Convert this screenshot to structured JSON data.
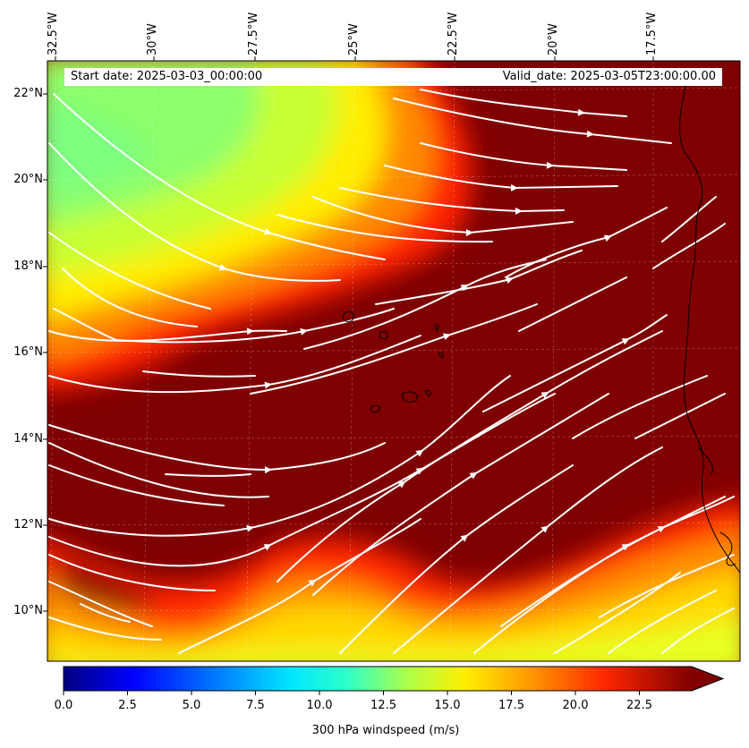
{
  "header": {
    "start_date": "Start date: 2025-03-03_00:00:00",
    "valid_date": "Valid_date: 2025-03-05T23:00:00.00"
  },
  "axes": {
    "lon_labels": [
      "32.5°W",
      "30°W",
      "27.5°W",
      "25°W",
      "22.5°W",
      "20°W",
      "17.5°W"
    ],
    "lat_labels": [
      "22°N",
      "20°N",
      "18°N",
      "16°N",
      "14°N",
      "12°N",
      "10°N"
    ]
  },
  "colorbar": {
    "label": "300 hPa windspeed (m/s)",
    "ticks": [
      "0.0",
      "2.5",
      "5.0",
      "7.5",
      "10.0",
      "12.5",
      "15.0",
      "17.5",
      "20.0",
      "22.5"
    ],
    "min": 0,
    "max": 24,
    "extend": "max",
    "colormap": "jet"
  },
  "map": {
    "field": "300 hPa windspeed",
    "units": "m/s",
    "lon_range": [
      -33.0,
      -15.0
    ],
    "lat_range": [
      8.9,
      22.8
    ],
    "overlay": "streamlines",
    "streamline_color": "#ffffff",
    "coastline_color": "#000000",
    "gridlines": true
  }
}
